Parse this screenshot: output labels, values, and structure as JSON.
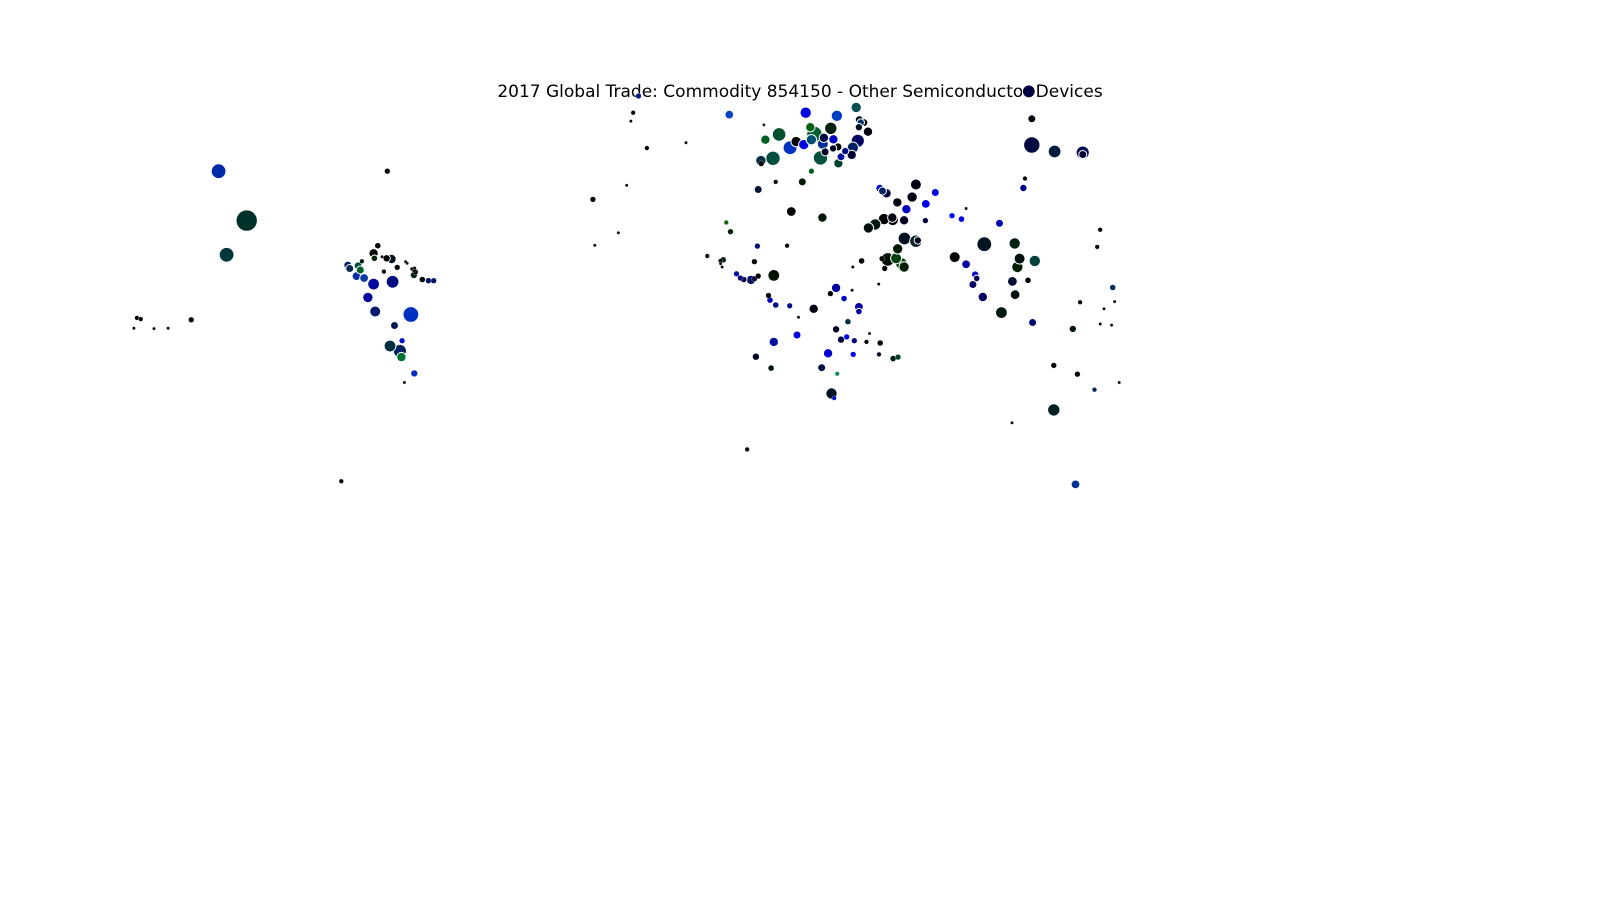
{
  "chart_data": {
    "type": "scatter",
    "title": "2017 Global Trade: Commodity 854150 - Other Semiconductor Devices",
    "xlabel": "",
    "ylabel": "",
    "xlim": [
      -180,
      180
    ],
    "ylim": [
      -90,
      90
    ],
    "grid": false,
    "legend": "none",
    "point_fields": [
      "longitude",
      "latitude",
      "size_index",
      "color"
    ],
    "points": [
      [
        -153,
        60.2,
        2.0,
        "#002aa8"
      ],
      [
        -145.6,
        47.2,
        4.2,
        "#00302a"
      ],
      [
        -150.9,
        38.2,
        2.0,
        "#00383a"
      ],
      [
        -42.5,
        80.0,
        0.3,
        "#0a1a78"
      ],
      [
        -18.6,
        75.1,
        0.7,
        "#0a44c0"
      ],
      [
        -9.5,
        72.4,
        0.1,
        "#1a2a1a"
      ],
      [
        -45.6,
        56.5,
        0.1,
        "#000000"
      ],
      [
        -54.5,
        52.8,
        0.3,
        "#000000"
      ],
      [
        -111.1,
        40.6,
        0.4,
        "#000000"
      ],
      [
        -112.2,
        38.6,
        0.8,
        "#000000"
      ],
      [
        -112.0,
        37.3,
        0.4,
        "#002000"
      ],
      [
        -115.3,
        36.5,
        0.2,
        "#001000"
      ],
      [
        -107.5,
        37.1,
        0.8,
        "#001020"
      ],
      [
        -108.8,
        37.3,
        0.5,
        "#000000"
      ],
      [
        -110.0,
        37.7,
        0.1,
        "#000000"
      ],
      [
        -103.8,
        36.4,
        0.1,
        "#000000"
      ],
      [
        -103.4,
        36.0,
        0.1,
        "#000000"
      ],
      [
        -102.2,
        34.5,
        0.1,
        "#000000"
      ],
      [
        -101.7,
        34.4,
        0.3,
        "#000000"
      ],
      [
        -101.4,
        34.7,
        0.1,
        "#000000"
      ],
      [
        -101.5,
        34.2,
        0.2,
        "#000000"
      ],
      [
        -101.2,
        33.7,
        0.3,
        "#000000"
      ],
      [
        -101.6,
        32.9,
        0.5,
        "#002010"
      ],
      [
        -106.0,
        34.9,
        0.3,
        "#000000"
      ],
      [
        -109.5,
        33.8,
        0.2,
        "#000000"
      ],
      [
        -119.0,
        35.5,
        0.6,
        "#002060"
      ],
      [
        -116.3,
        35.3,
        0.6,
        "#005040"
      ],
      [
        -118.5,
        34.6,
        0.6,
        "#002850"
      ],
      [
        -115.7,
        34.2,
        0.6,
        "#006030"
      ],
      [
        -116.7,
        32.6,
        0.7,
        "#0a2aa0"
      ],
      [
        -114.7,
        32.1,
        0.7,
        "#0a3aa0"
      ],
      [
        -112.2,
        30.5,
        1.3,
        "#000ba0"
      ],
      [
        -107.2,
        31.1,
        1.5,
        "#000a80"
      ],
      [
        -113.7,
        27.0,
        1.0,
        "#0000a0"
      ],
      [
        -111.8,
        23.3,
        1.1,
        "#001a70"
      ],
      [
        -106.7,
        19.6,
        0.6,
        "#001a50"
      ],
      [
        -102.4,
        22.5,
        2.3,
        "#0030c0"
      ],
      [
        -104.7,
        15.6,
        0.3,
        "#0010d0"
      ],
      [
        -104.9,
        11.3,
        0.8,
        "#007030"
      ],
      [
        -107.9,
        14.2,
        1.3,
        "#003040"
      ],
      [
        -105.3,
        12.9,
        1.6,
        "#002060"
      ],
      [
        -104.1,
        4.6,
        0.1,
        "#000000"
      ],
      [
        -170.0,
        18.8,
        0.1,
        "#000000"
      ],
      [
        -174.5,
        21.6,
        0.2,
        "#000000"
      ],
      [
        -173.5,
        21.3,
        0.2,
        "#000000"
      ],
      [
        -175.3,
        18.9,
        0.1,
        "#000000"
      ],
      [
        -166.3,
        18.9,
        0.1,
        "#000000"
      ],
      [
        -160.2,
        21.1,
        0.3,
        "#000000"
      ],
      [
        -97.8,
        31.4,
        0.4,
        "#001060"
      ],
      [
        -96.4,
        31.4,
        0.3,
        "#001060"
      ],
      [
        -99.4,
        31.7,
        0.4,
        "#000000"
      ],
      [
        -44.5,
        73.4,
        0.1,
        "#000000"
      ],
      [
        -40.3,
        66.3,
        0.2,
        "#000000"
      ],
      [
        -30.0,
        67.7,
        0.1,
        "#000000"
      ],
      [
        -5.5,
        69.9,
        1.7,
        "#005030"
      ],
      [
        -9.1,
        68.5,
        0.8,
        "#006020"
      ],
      [
        1.5,
        75.6,
        1.2,
        "#0000e0"
      ],
      [
        3.8,
        70.0,
        2.2,
        "#006030"
      ],
      [
        2.7,
        71.8,
        0.8,
        "#006010"
      ],
      [
        8.1,
        71.5,
        1.4,
        "#002010"
      ],
      [
        9.7,
        74.8,
        1.2,
        "#0040c0"
      ],
      [
        14.8,
        77.0,
        1.0,
        "#005050"
      ],
      [
        15.6,
        73.8,
        0.6,
        "#001010"
      ],
      [
        16.0,
        73.0,
        0.5,
        "#003060"
      ],
      [
        15.5,
        71.8,
        0.5,
        "#001020"
      ],
      [
        17.9,
        70.6,
        0.8,
        "#000010"
      ],
      [
        -1.0,
        68.0,
        1.0,
        "#000000"
      ],
      [
        1.0,
        67.2,
        1.0,
        "#0000e0"
      ],
      [
        -2.6,
        66.4,
        1.8,
        "#0030c0"
      ],
      [
        3.0,
        68.5,
        1.0,
        "#005070"
      ],
      [
        6.0,
        67.4,
        1.1,
        "#003090"
      ],
      [
        6.3,
        69.0,
        0.8,
        "#000040"
      ],
      [
        8.8,
        68.6,
        0.8,
        "#0000c0"
      ],
      [
        13.9,
        66.4,
        1.2,
        "#002060"
      ],
      [
        15.2,
        68.2,
        1.6,
        "#000060"
      ],
      [
        6.6,
        65.3,
        0.6,
        "#000020"
      ],
      [
        8.7,
        66.2,
        0.5,
        "#000020"
      ],
      [
        10.0,
        66.6,
        0.6,
        "#000000"
      ],
      [
        11.9,
        65.5,
        0.5,
        "#001080"
      ],
      [
        13.6,
        64.5,
        0.8,
        "#000030"
      ],
      [
        10.8,
        64.0,
        0.6,
        "#0010a0"
      ],
      [
        5.4,
        63.7,
        1.9,
        "#005040"
      ],
      [
        -10.3,
        63.0,
        1.0,
        "#003040"
      ],
      [
        -7.1,
        63.6,
        1.9,
        "#005040"
      ],
      [
        10.1,
        62.3,
        0.8,
        "#004030"
      ],
      [
        3.0,
        60.2,
        0.3,
        "#006020"
      ],
      [
        -6.4,
        57.4,
        0.2,
        "#000000"
      ],
      [
        -11.0,
        55.4,
        0.6,
        "#001030"
      ],
      [
        0.6,
        57.4,
        0.6,
        "#001a00"
      ],
      [
        -2.3,
        49.6,
        0.9,
        "#000000"
      ],
      [
        5.9,
        48.0,
        0.8,
        "#001800"
      ],
      [
        -19.4,
        46.7,
        0.2,
        "#106010"
      ],
      [
        -18.3,
        44.3,
        0.3,
        "#002000"
      ],
      [
        -11.2,
        40.5,
        0.3,
        "#001070"
      ],
      [
        -3.4,
        40.6,
        0.2,
        "#000000"
      ],
      [
        -24.4,
        37.9,
        0.2,
        "#000000"
      ],
      [
        -20.2,
        36.9,
        0.4,
        "#001a10"
      ],
      [
        -20.9,
        36.6,
        0.2,
        "#000000"
      ],
      [
        -20.9,
        35.9,
        0.1,
        "#000000"
      ],
      [
        -20.5,
        35.0,
        0.1,
        "#000000"
      ],
      [
        -12.0,
        36.4,
        0.3,
        "#000000"
      ],
      [
        -16.7,
        33.2,
        0.3,
        "#0010a0"
      ],
      [
        -15.7,
        32.1,
        0.3,
        "#001080"
      ],
      [
        -14.8,
        31.7,
        0.4,
        "#000040"
      ],
      [
        -12.9,
        31.6,
        0.8,
        "#001060"
      ],
      [
        -12.0,
        31.9,
        0.3,
        "#000030"
      ],
      [
        -11.0,
        32.6,
        0.3,
        "#000000"
      ],
      [
        -6.9,
        32.8,
        1.3,
        "#001000"
      ],
      [
        -8.3,
        27.5,
        0.3,
        "#000000"
      ],
      [
        -7.9,
        26.3,
        0.4,
        "#0000c0"
      ],
      [
        -6.4,
        25.0,
        0.4,
        "#001080"
      ],
      [
        -2.7,
        24.8,
        0.3,
        "#001080"
      ],
      [
        -0.8,
        17.1,
        0.6,
        "#0000e0"
      ],
      [
        -0.4,
        21.8,
        0.1,
        "#000000"
      ],
      [
        -6.9,
        15.3,
        0.8,
        "#0010a0"
      ],
      [
        -11.6,
        11.4,
        0.5,
        "#000020"
      ],
      [
        -7.6,
        8.4,
        0.4,
        "#001010"
      ],
      [
        3.6,
        24.0,
        0.8,
        "#000010"
      ],
      [
        8.0,
        28.0,
        0.3,
        "#000000"
      ],
      [
        12.6,
        20.6,
        0.4,
        "#003040"
      ],
      [
        15.5,
        23.3,
        0.4,
        "#0000a0"
      ],
      [
        9.5,
        29.5,
        0.8,
        "#0000a0"
      ],
      [
        11.6,
        26.7,
        0.4,
        "#0000c0"
      ],
      [
        13.7,
        28.9,
        0.1,
        "#000000"
      ],
      [
        13.9,
        35.0,
        0.1,
        "#000000"
      ],
      [
        16.2,
        36.6,
        0.4,
        "#000000"
      ],
      [
        21.6,
        37.2,
        0.3,
        "#000000"
      ],
      [
        22.3,
        34.6,
        0.3,
        "#000000"
      ],
      [
        20.7,
        30.5,
        0.1,
        "#000000"
      ],
      [
        7.4,
        12.3,
        0.8,
        "#0000d0"
      ],
      [
        5.7,
        8.5,
        0.6,
        "#001040"
      ],
      [
        15.5,
        24.5,
        0.7,
        "#0000a0"
      ],
      [
        9.5,
        18.6,
        0.5,
        "#000020"
      ],
      [
        10.8,
        15.9,
        0.5,
        "#000040"
      ],
      [
        12.3,
        16.6,
        0.3,
        "#0000e0"
      ],
      [
        14.0,
        12.0,
        0.3,
        "#0000f0"
      ],
      [
        14.3,
        15.6,
        0.3,
        "#000080"
      ],
      [
        17.5,
        15.3,
        0.2,
        "#000000"
      ],
      [
        18.3,
        17.5,
        0.1,
        "#000000"
      ],
      [
        21.1,
        15.0,
        0.4,
        "#000000"
      ],
      [
        20.8,
        12.0,
        0.2,
        "#000020"
      ],
      [
        24.5,
        10.9,
        0.4,
        "#002010"
      ],
      [
        25.8,
        11.3,
        0.3,
        "#004020"
      ],
      [
        8.3,
        1.7,
        1.2,
        "#001020"
      ],
      [
        9.8,
        6.9,
        0.2,
        "#109060"
      ],
      [
        9.0,
        0.5,
        0.2,
        "#0010c0"
      ],
      [
        16.8,
        73.0,
        0.6,
        "#000000"
      ],
      [
        -10.2,
        62.2,
        0.3,
        "#000000"
      ],
      [
        24.4,
        47.4,
        1.2,
        "#000000"
      ],
      [
        22.1,
        47.6,
        1.2,
        "#000000"
      ],
      [
        19.8,
        46.2,
        1.2,
        "#001a10"
      ],
      [
        18.0,
        45.3,
        1.0,
        "#001010"
      ],
      [
        27.5,
        42.5,
        1.5,
        "#001020"
      ],
      [
        25.7,
        39.8,
        1.0,
        "#001800"
      ],
      [
        23.1,
        37.0,
        1.7,
        "#001000"
      ],
      [
        25.3,
        37.3,
        1.1,
        "#004010"
      ],
      [
        26.7,
        35.9,
        1.3,
        "#004000"
      ],
      [
        27.4,
        35.0,
        1.0,
        "#002000"
      ],
      [
        30.5,
        41.8,
        1.4,
        "#002020"
      ],
      [
        27.4,
        47.3,
        0.8,
        "#000020"
      ],
      [
        24.3,
        48.0,
        0.8,
        "#000010"
      ],
      [
        21.0,
        55.7,
        0.6,
        "#0000d0"
      ],
      [
        21.7,
        55.0,
        0.6,
        "#002060"
      ],
      [
        22.8,
        54.4,
        0.8,
        "#000040"
      ],
      [
        25.6,
        52.0,
        0.8,
        "#000010"
      ],
      [
        29.5,
        53.4,
        1.0,
        "#000010"
      ],
      [
        30.5,
        56.7,
        1.1,
        "#000010"
      ],
      [
        33.0,
        47.2,
        0.3,
        "#000040"
      ],
      [
        33.1,
        51.6,
        0.7,
        "#0000e0"
      ],
      [
        35.6,
        54.6,
        0.6,
        "#0000e0"
      ],
      [
        28.0,
        50.2,
        0.8,
        "#0000c0"
      ],
      [
        31.0,
        42.0,
        0.5,
        "#000020"
      ],
      [
        40.0,
        48.5,
        0.3,
        "#0000f0"
      ],
      [
        42.5,
        47.6,
        0.4,
        "#0000e0"
      ],
      [
        48.5,
        41.0,
        2.0,
        "#001520"
      ],
      [
        40.7,
        37.6,
        1.1,
        "#000000"
      ],
      [
        43.7,
        35.7,
        0.7,
        "#0000a0"
      ],
      [
        45.5,
        30.4,
        0.6,
        "#000060"
      ],
      [
        46.1,
        33.0,
        0.5,
        "#0000c0"
      ],
      [
        46.5,
        32.0,
        0.4,
        "#000050"
      ],
      [
        55.9,
        31.2,
        0.9,
        "#001030"
      ],
      [
        56.6,
        27.7,
        0.9,
        "#001010"
      ],
      [
        53.0,
        23.0,
        1.3,
        "#001a10"
      ],
      [
        57.8,
        37.2,
        1.1,
        "#001010"
      ],
      [
        43.7,
        50.4,
        0.1,
        "#000000"
      ],
      [
        -43.9,
        75.6,
        0.2,
        "#000000"
      ],
      [
        74.4,
        64.6,
        0.6,
        "#000030"
      ],
      [
        60.2,
        81.2,
        1.5,
        "#000040"
      ],
      [
        61.0,
        67.1,
        2.5,
        "#000a40"
      ],
      [
        61.0,
        74.0,
        0.6,
        "#000010"
      ],
      [
        67.0,
        65.4,
        1.5,
        "#001a40"
      ],
      [
        74.4,
        65.1,
        1.6,
        "#000a50"
      ],
      [
        56.5,
        41.2,
        1.2,
        "#002010"
      ],
      [
        61.8,
        36.6,
        1.2,
        "#004040"
      ],
      [
        57.2,
        35.0,
        1.2,
        "#002000"
      ],
      [
        79.0,
        44.8,
        0.2,
        "#000000"
      ],
      [
        78.2,
        40.3,
        0.2,
        "#000000"
      ],
      [
        60.0,
        31.5,
        0.4,
        "#000000"
      ],
      [
        71.8,
        18.7,
        0.5,
        "#001010"
      ],
      [
        66.8,
        9.1,
        0.3,
        "#000000"
      ],
      [
        82.8,
        25.9,
        0.1,
        "#000000"
      ],
      [
        73.7,
        25.7,
        0.2,
        "#000000"
      ],
      [
        79.0,
        20.0,
        0.1,
        "#000000"
      ],
      [
        73.0,
        6.8,
        0.3,
        "#000000"
      ],
      [
        77.5,
        2.7,
        0.2,
        "#002050"
      ],
      [
        82.3,
        29.6,
        0.4,
        "#003060"
      ],
      [
        55.8,
        -6.0,
        0.1,
        "#000000"
      ],
      [
        -120.7,
        -21.4,
        0.2,
        "#000000"
      ],
      [
        80.0,
        24.0,
        0.1,
        "#000000"
      ],
      [
        84.0,
        4.6,
        0.1,
        "#000000"
      ],
      [
        82.0,
        19.7,
        0.1,
        "#000000"
      ],
      [
        61.2,
        20.4,
        0.6,
        "#000a70"
      ],
      [
        48.1,
        27.1,
        0.8,
        "#000060"
      ],
      [
        52.5,
        46.5,
        0.6,
        "#0000b0"
      ],
      [
        59.2,
        58.3,
        0.2,
        "#000000"
      ],
      [
        58.8,
        55.8,
        0.5,
        "#000090"
      ],
      [
        66.8,
        -2.6,
        1.4,
        "#002020"
      ],
      [
        72.5,
        -22.2,
        0.7,
        "#003090"
      ],
      [
        -54.0,
        40.7,
        0.1,
        "#000000"
      ],
      [
        -47.8,
        44.0,
        0.1,
        "#000000"
      ],
      [
        -13.9,
        -13.0,
        0.2,
        "#000000"
      ],
      [
        -108.6,
        60.2,
        0.3,
        "#000000"
      ],
      [
        -101.5,
        7.0,
        0.5,
        "#0a30c0"
      ]
    ]
  }
}
